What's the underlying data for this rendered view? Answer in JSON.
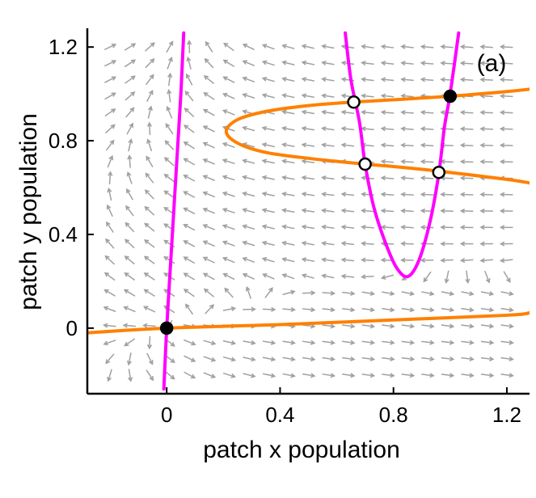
{
  "chart_data": {
    "type": "phase-plane",
    "panel_label": "(a)",
    "xlabel": "patch x population",
    "ylabel": "patch y population",
    "xlim": [
      -0.28,
      1.28
    ],
    "ylim": [
      -0.28,
      1.28
    ],
    "xticks": [
      0,
      0.4,
      0.8,
      1.2
    ],
    "yticks": [
      0,
      0.4,
      0.8,
      1.2
    ],
    "xtick_labels": [
      "0",
      "0.4",
      "0.8",
      "1.2"
    ],
    "ytick_labels": [
      "0",
      "0.4",
      "0.8",
      "1.2"
    ],
    "nullclines": {
      "magenta": {
        "color": "#ff00ff",
        "branches": [
          {
            "x": [
              -0.01,
              0.0,
              0.01,
              0.02,
              0.03,
              0.04,
              0.05,
              0.06
            ],
            "y": [
              -0.26,
              0.0,
              0.2,
              0.4,
              0.6,
              0.8,
              1.0,
              1.26
            ]
          },
          {
            "x": [
              0.63,
              0.65,
              0.68,
              0.7,
              0.73,
              0.77,
              0.81,
              0.85,
              0.89,
              0.93,
              0.96,
              0.98,
              1.0,
              1.03
            ],
            "y": [
              1.26,
              1.06,
              0.88,
              0.7,
              0.52,
              0.37,
              0.26,
              0.22,
              0.29,
              0.46,
              0.66,
              0.86,
              1.0,
              1.26
            ]
          }
        ]
      },
      "orange": {
        "color": "#ff8000",
        "branches": [
          {
            "x": [
              -0.28,
              0.0,
              0.4,
              0.8,
              1.2,
              1.28
            ],
            "y": [
              -0.02,
              0.0,
              0.015,
              0.035,
              0.055,
              0.065
            ]
          },
          {
            "x": [
              1.28,
              1.2,
              1.0,
              0.8,
              0.66,
              0.5,
              0.35,
              0.25,
              0.21,
              0.25,
              0.35,
              0.5,
              0.7,
              0.8,
              0.96,
              1.2,
              1.28
            ],
            "y": [
              1.02,
              1.01,
              0.99,
              0.975,
              0.965,
              0.95,
              0.925,
              0.89,
              0.84,
              0.79,
              0.75,
              0.725,
              0.7,
              0.69,
              0.67,
              0.635,
              0.62
            ]
          }
        ]
      }
    },
    "equilibria": [
      {
        "x": 0.0,
        "y": 0.0,
        "stable": true
      },
      {
        "x": 1.0,
        "y": 0.99,
        "stable": true
      },
      {
        "x": 0.66,
        "y": 0.965,
        "stable": false
      },
      {
        "x": 0.7,
        "y": 0.7,
        "stable": false
      },
      {
        "x": 0.96,
        "y": 0.665,
        "stable": false
      }
    ],
    "vector_field": {
      "color": "#a0a0a0",
      "x_range": [
        -0.2,
        1.2
      ],
      "y_range": [
        -0.2,
        1.2
      ],
      "steps": 20
    },
    "colors": {
      "magenta_nullcline": "#ff00ff",
      "orange_nullcline": "#ff8000",
      "arrows": "#a0a0a0",
      "stable_point": "#000000",
      "unstable_point_fill": "#ffffff"
    }
  }
}
